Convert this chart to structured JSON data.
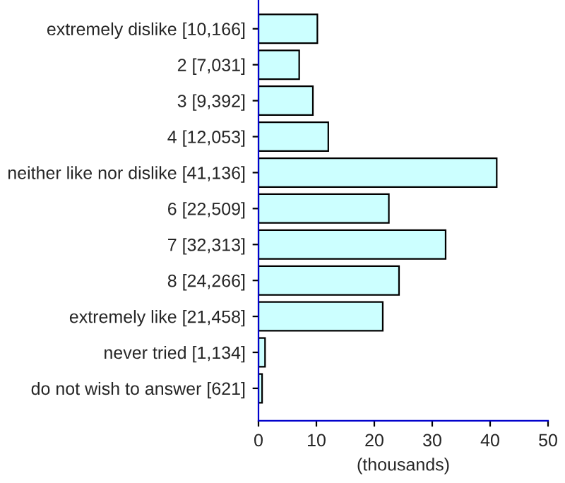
{
  "chart_data": {
    "type": "bar",
    "orientation": "horizontal",
    "xlabel": "(thousands)",
    "categories": [
      "extremely dislike [10,166]",
      "2 [7,031]",
      "3 [9,392]",
      "4 [12,053]",
      "neither like nor dislike [41,136]",
      "6 [22,509]",
      "7 [32,313]",
      "8 [24,266]",
      "extremely like [21,458]",
      "never tried [1,134]",
      "do not wish to answer [621]"
    ],
    "values": [
      10.166,
      7.031,
      9.392,
      12.053,
      41.136,
      22.509,
      32.313,
      24.266,
      21.458,
      1.134,
      0.621
    ],
    "color": "#ccffff",
    "xlim": [
      0,
      50
    ],
    "xticks": [
      0,
      10,
      20,
      30,
      40,
      50
    ],
    "grid": false,
    "legend": false
  }
}
